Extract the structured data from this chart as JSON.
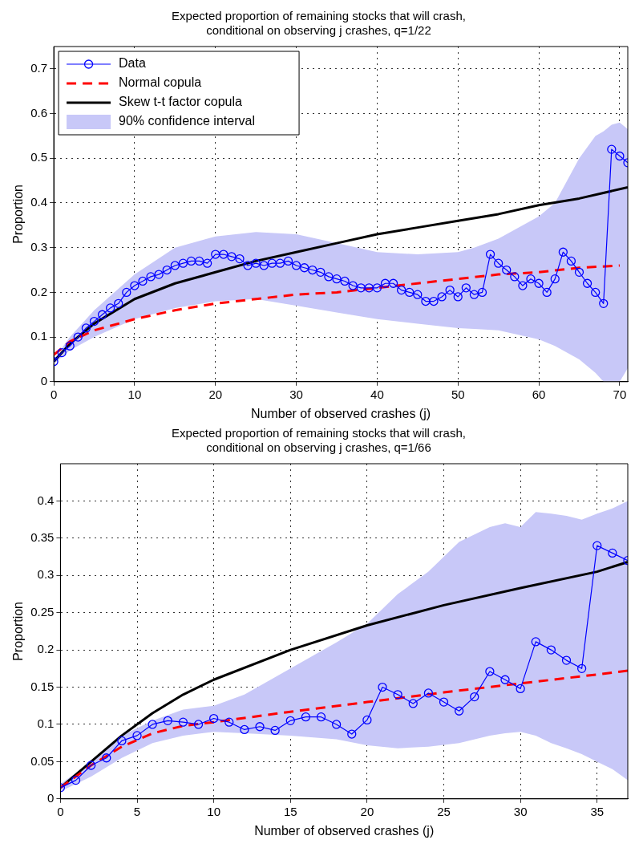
{
  "chart_data": [
    {
      "type": "line",
      "title": "Expected proportion of remaining stocks that will crash,\nconditional on observing j crashes, q=1/22",
      "xlabel": "Number of observed crashes (j)",
      "ylabel": "Proportion",
      "xlim": [
        0,
        71
      ],
      "xticks": [
        0,
        10,
        20,
        30,
        40,
        50,
        60,
        70
      ],
      "ylim": [
        0,
        0.75
      ],
      "yticks": [
        0,
        0.1,
        0.2,
        0.3,
        0.4,
        0.5,
        0.6,
        0.7
      ],
      "grid": true,
      "legend": "top left",
      "series": [
        {
          "name": "Data",
          "color": "#0000ff",
          "marker": "circle",
          "line_style": "solid",
          "x": [
            0,
            1,
            2,
            3,
            4,
            5,
            6,
            7,
            8,
            9,
            10,
            11,
            12,
            13,
            14,
            15,
            16,
            17,
            18,
            19,
            20,
            21,
            22,
            23,
            24,
            25,
            26,
            27,
            28,
            29,
            30,
            31,
            32,
            33,
            34,
            35,
            36,
            37,
            38,
            39,
            40,
            41,
            42,
            43,
            44,
            45,
            46,
            47,
            48,
            49,
            50,
            51,
            52,
            53,
            54,
            55,
            56,
            57,
            58,
            59,
            60,
            61,
            62,
            63,
            64,
            65,
            66,
            67,
            68,
            69,
            70,
            71
          ],
          "values": [
            0.045,
            0.065,
            0.08,
            0.1,
            0.12,
            0.135,
            0.15,
            0.165,
            0.175,
            0.2,
            0.215,
            0.225,
            0.235,
            0.24,
            0.25,
            0.26,
            0.265,
            0.27,
            0.27,
            0.265,
            0.285,
            0.285,
            0.28,
            0.275,
            0.26,
            0.265,
            0.26,
            0.265,
            0.265,
            0.27,
            0.26,
            0.255,
            0.25,
            0.245,
            0.235,
            0.23,
            0.225,
            0.215,
            0.21,
            0.21,
            0.21,
            0.22,
            0.22,
            0.205,
            0.2,
            0.195,
            0.18,
            0.18,
            0.19,
            0.205,
            0.19,
            0.21,
            0.195,
            0.2,
            0.285,
            0.265,
            0.25,
            0.235,
            0.215,
            0.23,
            0.22,
            0.2,
            0.23,
            0.29,
            0.27,
            0.245,
            0.22,
            0.2,
            0.175,
            0.52,
            0.505,
            0.49
          ]
        },
        {
          "name": "Normal copula",
          "color": "#ff0000",
          "marker": "none",
          "line_style": "dashed",
          "x": [
            0,
            2,
            5,
            10,
            15,
            20,
            25,
            30,
            35,
            40,
            45,
            50,
            55,
            60,
            65,
            70
          ],
          "values": [
            0.06,
            0.09,
            0.115,
            0.14,
            0.16,
            0.175,
            0.185,
            0.195,
            0.2,
            0.21,
            0.22,
            0.23,
            0.24,
            0.245,
            0.255,
            0.26
          ]
        },
        {
          "name": "Skew t-t factor copula",
          "color": "#000000",
          "marker": "none",
          "line_style": "solid",
          "x": [
            0,
            2,
            5,
            10,
            15,
            20,
            25,
            30,
            35,
            40,
            45,
            50,
            55,
            60,
            65,
            71
          ],
          "values": [
            0.045,
            0.085,
            0.13,
            0.185,
            0.22,
            0.245,
            0.27,
            0.29,
            0.31,
            0.33,
            0.345,
            0.36,
            0.375,
            0.395,
            0.41,
            0.435
          ]
        },
        {
          "name": "90% confidence interval",
          "type": "area",
          "color": "#c8c8f8",
          "values": [
            null,
            null,
            null,
            null,
            null,
            null,
            null,
            null,
            null,
            null,
            null,
            null,
            null,
            null,
            null,
            null,
            null,
            null,
            null,
            null,
            null,
            null
          ],
          "x": [
            0,
            2,
            5,
            10,
            15,
            20,
            25,
            30,
            35,
            40,
            45,
            50,
            52,
            55,
            60,
            62,
            65,
            67,
            68,
            69,
            70,
            71
          ],
          "lower": [
            0.04,
            0.07,
            0.1,
            0.14,
            0.165,
            0.18,
            0.185,
            0.17,
            0.155,
            0.14,
            0.13,
            0.12,
            0.118,
            0.115,
            0.095,
            0.08,
            0.05,
            0.02,
            0.0,
            0.0,
            0.0,
            0.03
          ],
          "upper": [
            0.05,
            0.1,
            0.16,
            0.24,
            0.3,
            0.325,
            0.335,
            0.33,
            0.31,
            0.29,
            0.285,
            0.29,
            0.3,
            0.32,
            0.37,
            0.4,
            0.5,
            0.55,
            0.56,
            0.575,
            0.58,
            0.565
          ]
        }
      ]
    },
    {
      "type": "line",
      "title": "Expected proportion of remaining stocks that will crash,\nconditional on observing j crashes, q=1/66",
      "xlabel": "Number of observed crashes (j)",
      "ylabel": "Proportion",
      "xlim": [
        0,
        37
      ],
      "xticks": [
        0,
        5,
        10,
        15,
        20,
        25,
        30,
        35
      ],
      "ylim": [
        0,
        0.45
      ],
      "yticks": [
        0,
        0.05,
        0.1,
        0.15,
        0.2,
        0.25,
        0.3,
        0.35,
        0.4
      ],
      "grid": true,
      "series": [
        {
          "color": "#0000ff",
          "marker": "circle",
          "line_style": "solid",
          "x": [
            0,
            1,
            2,
            3,
            4,
            5,
            6,
            7,
            8,
            9,
            10,
            11,
            12,
            13,
            14,
            15,
            16,
            17,
            18,
            19,
            20,
            21,
            22,
            23,
            24,
            25,
            26,
            27,
            28,
            29,
            30,
            31,
            32,
            33,
            34,
            35,
            36,
            37
          ],
          "values": [
            0.015,
            0.025,
            0.045,
            0.055,
            0.078,
            0.085,
            0.1,
            0.105,
            0.103,
            0.1,
            0.108,
            0.103,
            0.093,
            0.097,
            0.092,
            0.105,
            0.11,
            0.11,
            0.1,
            0.087,
            0.106,
            0.15,
            0.14,
            0.128,
            0.142,
            0.13,
            0.118,
            0.137,
            0.171,
            0.16,
            0.148,
            0.211,
            0.2,
            0.186,
            0.175,
            0.34,
            0.33,
            0.32
          ]
        },
        {
          "color": "#ff0000",
          "marker": "none",
          "line_style": "dashed",
          "x": [
            0,
            2,
            4,
            6,
            8,
            10,
            15,
            20,
            25,
            30,
            35,
            37
          ],
          "values": [
            0.015,
            0.045,
            0.07,
            0.088,
            0.098,
            0.103,
            0.117,
            0.13,
            0.143,
            0.155,
            0.167,
            0.172
          ]
        },
        {
          "color": "#000000",
          "marker": "none",
          "line_style": "solid",
          "x": [
            0,
            2,
            4,
            6,
            8,
            10,
            15,
            20,
            25,
            30,
            35,
            37
          ],
          "values": [
            0.015,
            0.05,
            0.085,
            0.115,
            0.14,
            0.16,
            0.2,
            0.233,
            0.26,
            0.283,
            0.305,
            0.318
          ]
        },
        {
          "type": "area",
          "color": "#c8c8f8",
          "values": [
            null,
            null,
            null,
            null,
            null,
            null,
            null,
            null,
            null,
            null,
            null,
            null,
            null,
            null,
            null,
            null,
            null,
            null,
            null,
            null,
            null,
            null,
            null
          ],
          "x": [
            0,
            2,
            4,
            6,
            8,
            10,
            12,
            15,
            18,
            20,
            22,
            24,
            26,
            28,
            29,
            30,
            31,
            32,
            33,
            34,
            35,
            36,
            37
          ],
          "lower": [
            0.01,
            0.03,
            0.055,
            0.075,
            0.085,
            0.09,
            0.088,
            0.085,
            0.08,
            0.072,
            0.068,
            0.07,
            0.075,
            0.085,
            0.088,
            0.09,
            0.085,
            0.075,
            0.068,
            0.06,
            0.05,
            0.04,
            0.025
          ],
          "upper": [
            0.02,
            0.05,
            0.085,
            0.105,
            0.12,
            0.125,
            0.14,
            0.175,
            0.21,
            0.235,
            0.275,
            0.305,
            0.345,
            0.365,
            0.37,
            0.365,
            0.385,
            0.383,
            0.38,
            0.375,
            0.383,
            0.39,
            0.4
          ]
        }
      ]
    }
  ]
}
